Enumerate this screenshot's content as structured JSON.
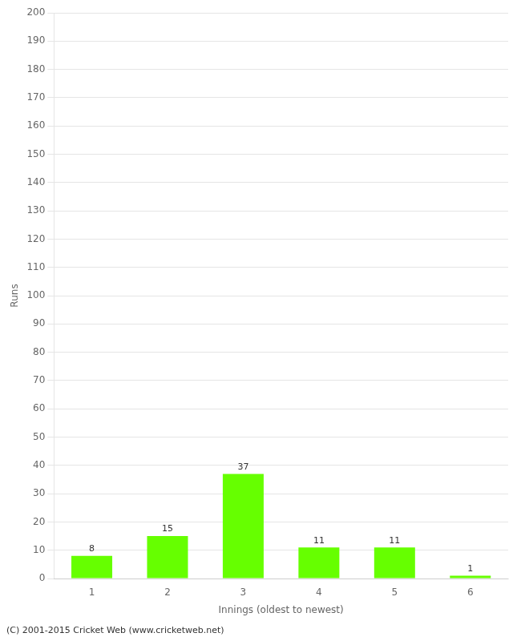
{
  "chart_data": {
    "type": "bar",
    "categories": [
      "1",
      "2",
      "3",
      "4",
      "5",
      "6"
    ],
    "values": [
      8,
      15,
      37,
      11,
      11,
      1
    ],
    "color": "#66ff00",
    "xlabel": "Innings (oldest to newest)",
    "ylabel": "Runs",
    "ylim": [
      0,
      200
    ],
    "yticks": [
      0,
      10,
      20,
      30,
      40,
      50,
      60,
      70,
      80,
      90,
      100,
      110,
      120,
      130,
      140,
      150,
      160,
      170,
      180,
      190,
      200
    ],
    "grid": true,
    "data_labels": true,
    "footer": "(C) 2001-2015 Cricket Web (www.cricketweb.net)"
  }
}
